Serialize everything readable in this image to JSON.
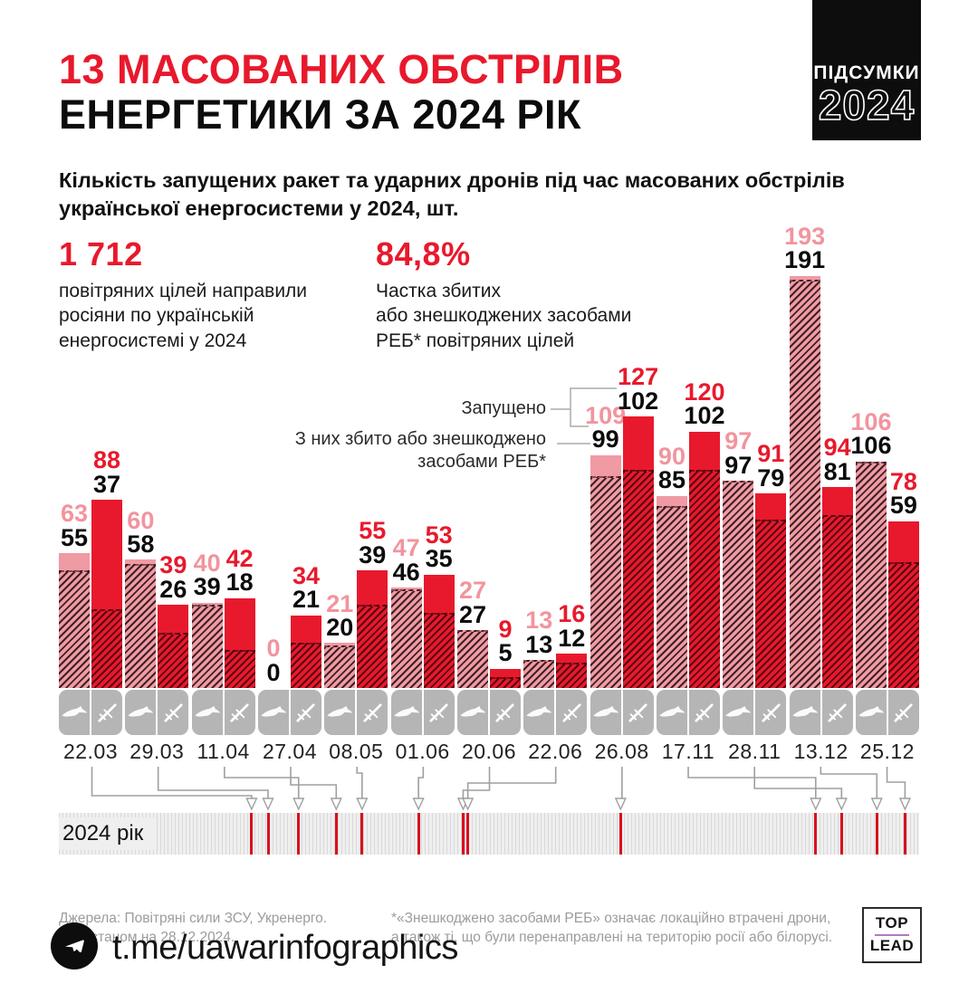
{
  "header": {
    "title_line1": "13 МАСОВАНИХ ОБСТРІЛІВ",
    "title_line2": "ЕНЕРГЕТИКИ ЗА 2024 РІК",
    "badge_line1": "ПІДСУМКИ",
    "badge_line2": "2024",
    "subtitle_line1": "Кількість запущених ракет та ударних дронів під час масованих обстрілів",
    "subtitle_line2": "української енергосистеми у 2024, шт."
  },
  "stats": [
    {
      "value": "1 712",
      "caption_lines": [
        "повітряних цілей направили",
        "росіяни по українській",
        "енергосистемі у 2024"
      ]
    },
    {
      "value": "84,8%",
      "caption_lines": [
        "Частка збитих",
        "або знешкоджених засобами",
        "РЕБ* повітряних цілей"
      ]
    }
  ],
  "legend": {
    "launched_label": "Запущено",
    "downed_label_line1": "З них збито або знешкоджено",
    "downed_label_line2": "засобами РЕБ*"
  },
  "chart_data": {
    "type": "bar",
    "title": "Кількість запущених ракет та ударних дронів під час масованих обстрілів української енергосистеми у 2024, шт.",
    "categories": [
      "22.03",
      "29.03",
      "11.04",
      "27.04",
      "08.05",
      "01.06",
      "20.06",
      "22.06",
      "26.08",
      "17.11",
      "28.11",
      "13.12",
      "25.12"
    ],
    "series": [
      {
        "name": "Дрони — запущено",
        "values": [
          63,
          60,
          40,
          0,
          21,
          47,
          27,
          13,
          109,
          90,
          97,
          193,
          106
        ]
      },
      {
        "name": "Дрони — збито/знешкоджено РЕБ",
        "values": [
          55,
          58,
          39,
          0,
          20,
          46,
          27,
          13,
          99,
          85,
          97,
          191,
          106
        ]
      },
      {
        "name": "Ракети — запущено",
        "values": [
          88,
          39,
          42,
          34,
          55,
          53,
          9,
          16,
          127,
          120,
          91,
          94,
          78
        ]
      },
      {
        "name": "Ракети — збито/знешкоджено РЕБ",
        "values": [
          37,
          26,
          18,
          21,
          39,
          35,
          5,
          12,
          102,
          102,
          79,
          81,
          59
        ]
      }
    ],
    "ylim": [
      0,
      200
    ],
    "grid": false,
    "legend_position": "above 26.08 bars",
    "unit": "шт.",
    "timeline_day_of_year": [
      82,
      89,
      102,
      118,
      129,
      153,
      172,
      174,
      239,
      322,
      333,
      348,
      360
    ],
    "year_days": 366,
    "colors": {
      "drone_bar": "#f09aa3",
      "missile_bar": "#e8192c",
      "drone_label": "#f2949e",
      "missile_label": "#e8192c",
      "downed_label": "#0c0c0c",
      "icon_cell": "#b5b5b5",
      "timeline_mark": "#d8101f"
    }
  },
  "timeline": {
    "label": "2024 рік"
  },
  "sources": {
    "line1": "Джерела: Повітряні сили ЗСУ, Укренерго.",
    "line2": "Дані станом на 28.12.2024."
  },
  "note": {
    "line1": "*«Знешкоджено засобами РЕБ» означає локаційно втрачені дрони,",
    "line2": "а також ті, що були перенаправлені на територію росії або білорусі."
  },
  "footer": {
    "handle": "t.me/uawarinfographics",
    "logo_top": "TOP",
    "logo_bottom": "LEAD"
  },
  "icons": {
    "drone": "drone-icon",
    "missile": "missile-icon",
    "telegram": "telegram-icon"
  }
}
